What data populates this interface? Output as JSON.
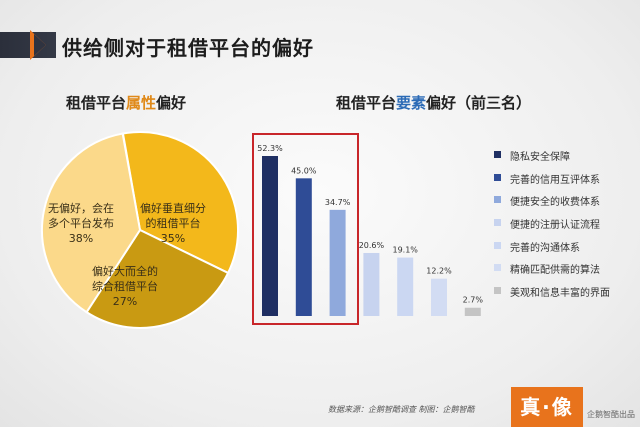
{
  "header": {
    "title": "供给侧对于租借平台的偏好"
  },
  "pie_title": {
    "pre": "租借平台",
    "hl": "属性",
    "post": "偏好"
  },
  "bar_title": {
    "pre": "租借平台",
    "hl": "要素",
    "post": "偏好（前三名）"
  },
  "colors": {
    "accent": "#e8731c",
    "pie": [
      "#fbd98a",
      "#f3b81b",
      "#c99a12"
    ],
    "bars": [
      "#1f2f63",
      "#2f4c96",
      "#8fa9dc",
      "#c7d3ef",
      "#cbd7f2",
      "#d2dcf3",
      "#c4c4c4"
    ],
    "highlight": "#c8262a"
  },
  "chart_data": [
    {
      "type": "pie",
      "title": "租借平台属性偏好",
      "slices": [
        {
          "line1": "无偏好，会在",
          "line2": "多个平台发布",
          "pct": "38%",
          "value": 38
        },
        {
          "line1": "偏好垂直细分",
          "line2": "的租借平台",
          "pct": "35%",
          "value": 35
        },
        {
          "line1": "偏好大而全的",
          "line2": "综合租借平台",
          "pct": "27%",
          "value": 27
        }
      ]
    },
    {
      "type": "bar",
      "title": "租借平台要素偏好（前三名）",
      "categories": [
        "隐私安全保障",
        "完善的信用互评体系",
        "便捷安全的收费体系",
        "便捷的注册认证流程",
        "完善的沟通体系",
        "精确匹配供需的算法",
        "美观和信息丰富的界面"
      ],
      "values": [
        52.3,
        45.0,
        34.7,
        20.6,
        19.1,
        12.2,
        2.7
      ],
      "labels": [
        "52.3%",
        "45.0%",
        "34.7%",
        "20.6%",
        "19.1%",
        "12.2%",
        "2.7%"
      ],
      "ylim": [
        0,
        60
      ]
    }
  ],
  "footer": {
    "source": "数据来源：企鹅智酷调查  制图：企鹅智酷",
    "logo_text": "真·像",
    "brand": "企鹅智酷出品"
  }
}
